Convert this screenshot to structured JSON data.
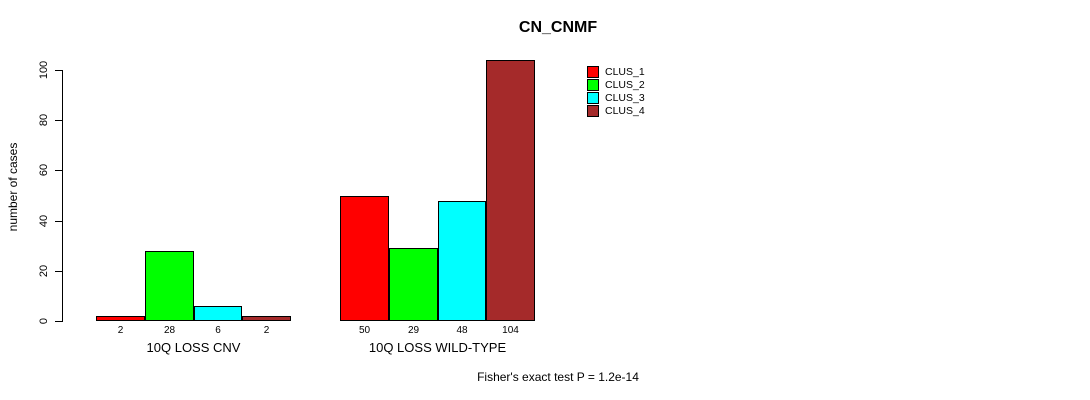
{
  "chart_data": {
    "type": "bar",
    "title": "CN_CNMF",
    "ylabel": "number of cases",
    "xlabel": "",
    "ylim": [
      0,
      104
    ],
    "yticks": [
      0,
      20,
      40,
      60,
      80,
      100
    ],
    "grid": false,
    "categories": [
      "10Q LOSS CNV",
      "10Q LOSS WILD-TYPE"
    ],
    "series": [
      {
        "name": "CLUS_1",
        "color": "#FF0000",
        "values": [
          2,
          50
        ]
      },
      {
        "name": "CLUS_2",
        "color": "#00FF00",
        "values": [
          28,
          29
        ]
      },
      {
        "name": "CLUS_3",
        "color": "#00FFFF",
        "values": [
          6,
          48
        ]
      },
      {
        "name": "CLUS_4",
        "color": "#A52A2A",
        "values": [
          2,
          104
        ]
      }
    ],
    "bar_value_labels": [
      [
        "2",
        "28",
        "6",
        "2"
      ],
      [
        "50",
        "29",
        "48",
        "104"
      ]
    ],
    "legend": [
      "CLUS_1",
      "CLUS_2",
      "CLUS_3",
      "CLUS_4"
    ],
    "legend_position": "topright",
    "annotation": "Fisher's exact test P = 1.2e-14"
  }
}
